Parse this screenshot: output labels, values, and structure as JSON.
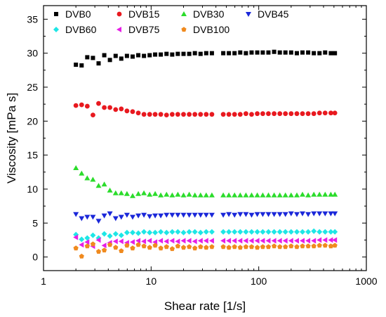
{
  "chart_data": {
    "type": "scatter",
    "xlabel": "Shear rate [1/s]",
    "ylabel": "Viscosity [mPa s]",
    "xscale": "log",
    "xlim": [
      1,
      1000
    ],
    "ylim": [
      -2,
      37
    ],
    "xticks": [
      1,
      10,
      100,
      1000
    ],
    "xtick_labels": [
      "1",
      "10",
      "100",
      "1000"
    ],
    "yticks": [
      0,
      5,
      10,
      15,
      20,
      25,
      30,
      35
    ],
    "ytick_labels": [
      "0",
      "5",
      "10",
      "15",
      "20",
      "25",
      "30",
      "35"
    ],
    "grid": false,
    "legend_position": "top",
    "x": [
      2.0,
      2.26,
      2.55,
      2.88,
      3.25,
      3.67,
      4.14,
      4.68,
      5.28,
      5.96,
      6.73,
      7.6,
      8.58,
      9.69,
      10.9,
      12.3,
      13.9,
      15.7,
      17.7,
      20.0,
      22.6,
      25.5,
      28.8,
      32.5,
      36.7,
      46.8,
      52.8,
      59.6,
      67.3,
      76.0,
      85.8,
      96.9,
      109,
      123,
      139,
      157,
      177,
      200,
      226,
      255,
      288,
      325,
      367,
      414,
      468,
      510
    ],
    "series": [
      {
        "name": "DVB0",
        "color": "#000000",
        "marker": "square",
        "values": [
          28.3,
          28.2,
          29.4,
          29.3,
          28.5,
          29.7,
          29.0,
          29.6,
          29.2,
          29.6,
          29.5,
          29.7,
          29.6,
          29.7,
          29.8,
          29.8,
          29.9,
          29.8,
          29.9,
          29.9,
          29.9,
          30.0,
          29.9,
          30.0,
          30.0,
          30.0,
          30.0,
          30.0,
          30.1,
          30.0,
          30.1,
          30.1,
          30.1,
          30.1,
          30.2,
          30.1,
          30.1,
          30.1,
          30.0,
          30.1,
          30.1,
          30.0,
          30.0,
          30.1,
          30.0,
          30.0
        ]
      },
      {
        "name": "DVB15",
        "color": "#e8191f",
        "marker": "circle",
        "values": [
          22.3,
          22.4,
          22.2,
          20.9,
          22.6,
          22.0,
          22.0,
          21.7,
          21.8,
          21.5,
          21.4,
          21.2,
          21.0,
          21.0,
          21.0,
          21.0,
          20.9,
          21.0,
          21.0,
          21.0,
          21.0,
          21.0,
          21.0,
          21.0,
          21.0,
          21.0,
          21.0,
          21.0,
          21.0,
          21.1,
          21.0,
          21.1,
          21.1,
          21.1,
          21.1,
          21.1,
          21.1,
          21.1,
          21.1,
          21.1,
          21.1,
          21.1,
          21.2,
          21.2,
          21.2,
          21.2
        ]
      },
      {
        "name": "DVB30",
        "color": "#2bdc2b",
        "marker": "triangle-up",
        "values": [
          13.1,
          12.3,
          11.6,
          11.4,
          10.5,
          10.7,
          9.8,
          9.4,
          9.4,
          9.3,
          9.0,
          9.3,
          9.4,
          9.2,
          9.3,
          9.1,
          9.2,
          9.1,
          9.2,
          9.1,
          9.2,
          9.1,
          9.1,
          9.1,
          9.1,
          9.1,
          9.1,
          9.1,
          9.1,
          9.1,
          9.1,
          9.1,
          9.1,
          9.1,
          9.1,
          9.1,
          9.1,
          9.1,
          9.1,
          9.2,
          9.1,
          9.2,
          9.2,
          9.2,
          9.2,
          9.2
        ]
      },
      {
        "name": "DVB45",
        "color": "#1b28d9",
        "marker": "triangle-down",
        "values": [
          6.3,
          5.7,
          5.9,
          5.9,
          5.3,
          6.1,
          6.4,
          5.7,
          5.9,
          6.2,
          5.9,
          6.1,
          6.2,
          6.0,
          6.1,
          6.1,
          6.2,
          6.2,
          6.2,
          6.2,
          6.2,
          6.2,
          6.2,
          6.2,
          6.2,
          6.2,
          6.3,
          6.2,
          6.3,
          6.3,
          6.2,
          6.3,
          6.3,
          6.3,
          6.3,
          6.3,
          6.3,
          6.4,
          6.3,
          6.4,
          6.3,
          6.4,
          6.4,
          6.4,
          6.4,
          6.4
        ]
      },
      {
        "name": "DVB60",
        "color": "#1ee6e6",
        "marker": "diamond",
        "values": [
          3.3,
          2.6,
          2.8,
          3.2,
          2.8,
          3.4,
          3.1,
          3.4,
          3.2,
          3.6,
          3.6,
          3.5,
          3.7,
          3.6,
          3.6,
          3.7,
          3.6,
          3.7,
          3.7,
          3.6,
          3.7,
          3.7,
          3.6,
          3.7,
          3.7,
          3.7,
          3.7,
          3.7,
          3.7,
          3.7,
          3.7,
          3.7,
          3.7,
          3.7,
          3.7,
          3.7,
          3.7,
          3.7,
          3.7,
          3.7,
          3.7,
          3.8,
          3.7,
          3.7,
          3.7,
          3.7
        ]
      },
      {
        "name": "DVB75",
        "color": "#e61ee6",
        "marker": "triangle-left",
        "values": [
          2.9,
          1.8,
          2.2,
          1.6,
          2.5,
          1.7,
          2.1,
          2.3,
          2.3,
          2.1,
          2.2,
          2.4,
          2.3,
          2.4,
          2.2,
          2.4,
          2.3,
          2.4,
          2.3,
          2.4,
          2.4,
          2.3,
          2.4,
          2.4,
          2.4,
          2.4,
          2.4,
          2.4,
          2.4,
          2.4,
          2.4,
          2.4,
          2.4,
          2.4,
          2.4,
          2.4,
          2.4,
          2.4,
          2.4,
          2.4,
          2.4,
          2.4,
          2.5,
          2.5,
          2.5,
          2.5
        ]
      },
      {
        "name": "DVB100",
        "color": "#f08a1e",
        "marker": "pentagon",
        "values": [
          1.3,
          0.1,
          1.6,
          1.9,
          0.8,
          1.0,
          1.8,
          1.4,
          0.9,
          1.7,
          1.3,
          1.8,
          1.6,
          1.4,
          1.7,
          1.3,
          1.5,
          1.2,
          1.6,
          1.4,
          1.5,
          1.3,
          1.5,
          1.4,
          1.5,
          1.5,
          1.4,
          1.5,
          1.4,
          1.5,
          1.5,
          1.4,
          1.5,
          1.5,
          1.6,
          1.5,
          1.5,
          1.6,
          1.5,
          1.6,
          1.6,
          1.6,
          1.7,
          1.7,
          1.6,
          1.7
        ]
      }
    ]
  }
}
